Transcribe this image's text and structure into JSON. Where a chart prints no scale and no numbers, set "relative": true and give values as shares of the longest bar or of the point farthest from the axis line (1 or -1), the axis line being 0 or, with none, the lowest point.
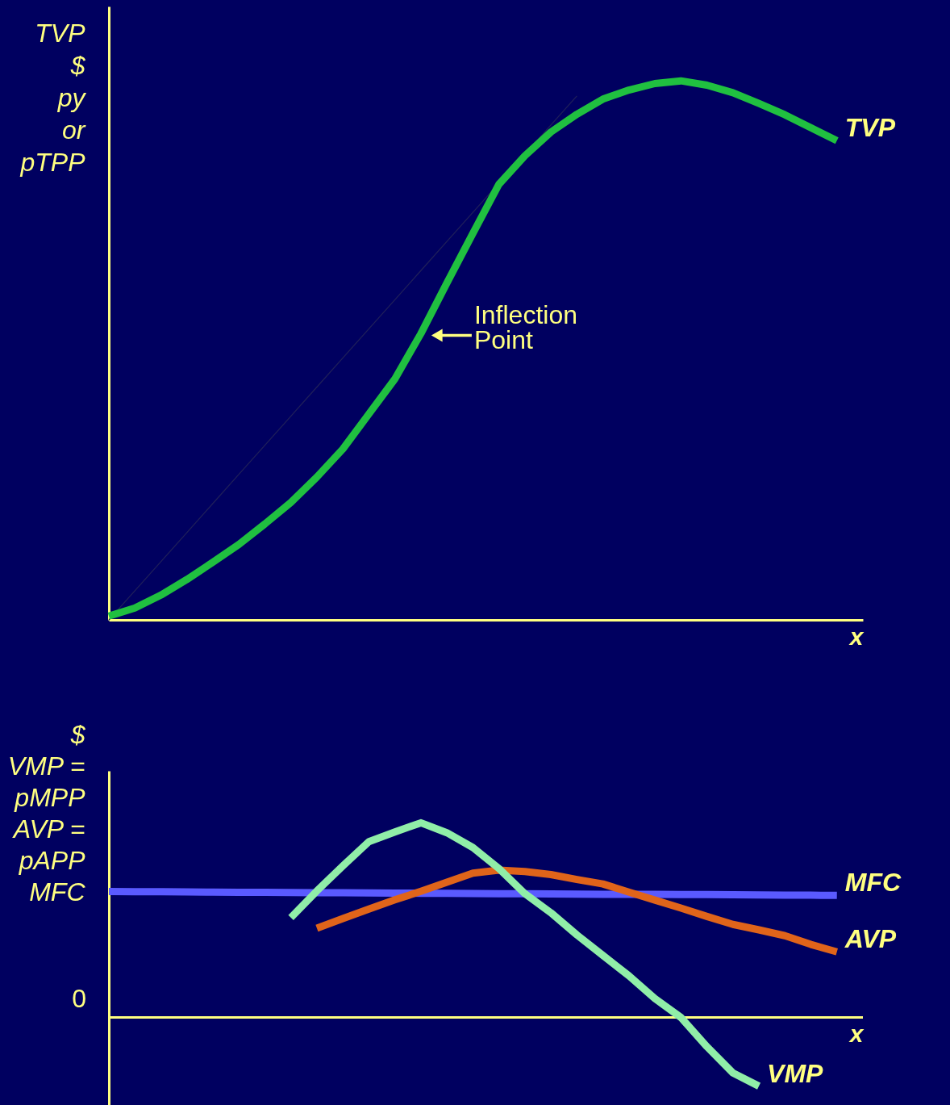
{
  "chart_data": [
    {
      "type": "line",
      "relative": true,
      "tick_labels": false,
      "xlabel": "x",
      "ylabel": "TVP\n$\npy\nor\npTPP",
      "categories": [
        null,
        null,
        null,
        null,
        null,
        null,
        null,
        null,
        null,
        null,
        null,
        null,
        null,
        null,
        null,
        null,
        null,
        null,
        null,
        null,
        null,
        null,
        null,
        null,
        null,
        null,
        null,
        null,
        null,
        null
      ],
      "series": [
        {
          "color": "#20205a",
          "values": [
            0,
            0.054,
            0.108,
            0.162,
            0.216,
            0.27,
            0.324,
            0.378,
            0.432,
            0.486,
            0.54,
            0.594,
            0.648,
            0.702,
            0.756,
            0.81,
            0.864,
            0.918,
            0.972,
            null,
            null,
            null,
            null,
            null,
            null,
            null,
            null,
            null,
            null,
            null
          ]
        },
        {
          "name": "TVP",
          "color": "#20c040",
          "values": [
            0.007,
            0.022,
            0.046,
            0.075,
            0.107,
            0.14,
            0.178,
            0.218,
            0.265,
            0.317,
            0.382,
            0.447,
            0.531,
            0.625,
            0.717,
            0.808,
            0.861,
            0.905,
            0.938,
            0.966,
            0.983,
            0.995,
            1.0,
            0.992,
            0.978,
            0.958,
            0.937,
            0.913,
            0.889,
            null
          ]
        }
      ],
      "annotations": [
        "Inflection Point"
      ]
    },
    {
      "type": "line",
      "relative": true,
      "tick_labels": false,
      "xlabel": "x",
      "ylabel": "$\nVMP =\npMPP\nAVP =\npAPP\nMFC",
      "categories": [
        null,
        null,
        null,
        null,
        null,
        null,
        null,
        null,
        null,
        null,
        null,
        null,
        null,
        null,
        null,
        null,
        null,
        null,
        null,
        null,
        null,
        null,
        null,
        null,
        null,
        null,
        null,
        null,
        null,
        null
      ],
      "series": [
        {
          "name": "MFC",
          "color": "#5a5aff",
          "values": [
            0.647,
            0.646,
            0.646,
            0.645,
            0.644,
            0.643,
            0.643,
            0.642,
            0.641,
            0.641,
            0.64,
            0.639,
            0.638,
            0.638,
            0.637,
            0.636,
            0.636,
            0.635,
            0.634,
            0.633,
            0.633,
            0.632,
            0.631,
            0.631,
            0.63,
            0.629,
            0.628,
            0.628,
            0.627,
            null
          ]
        },
        {
          "name": "AVP",
          "color": "#e0641a",
          "values": [
            null,
            null,
            null,
            null,
            null,
            null,
            null,
            null,
            0.458,
            0.508,
            0.557,
            0.604,
            0.648,
            0.695,
            0.741,
            0.757,
            0.75,
            0.734,
            0.709,
            0.686,
            0.644,
            0.603,
            0.562,
            0.519,
            0.478,
            0.45,
            0.42,
            0.375,
            0.337,
            null
          ]
        },
        {
          "name": "VMP",
          "color": "#90eea8",
          "values": [
            null,
            null,
            null,
            null,
            null,
            null,
            null,
            0.513,
            0.65,
            0.779,
            0.903,
            0.953,
            1.0,
            0.949,
            0.873,
            0.765,
            0.636,
            0.538,
            0.424,
            0.319,
            0.214,
            0.097,
            0,
            -0.15,
            -0.285,
            -0.353,
            null,
            null,
            null,
            null
          ]
        }
      ],
      "ref_lines": [
        {
          "axis": "y",
          "value": 0,
          "label": "0",
          "color": "#ffff80"
        }
      ]
    }
  ]
}
